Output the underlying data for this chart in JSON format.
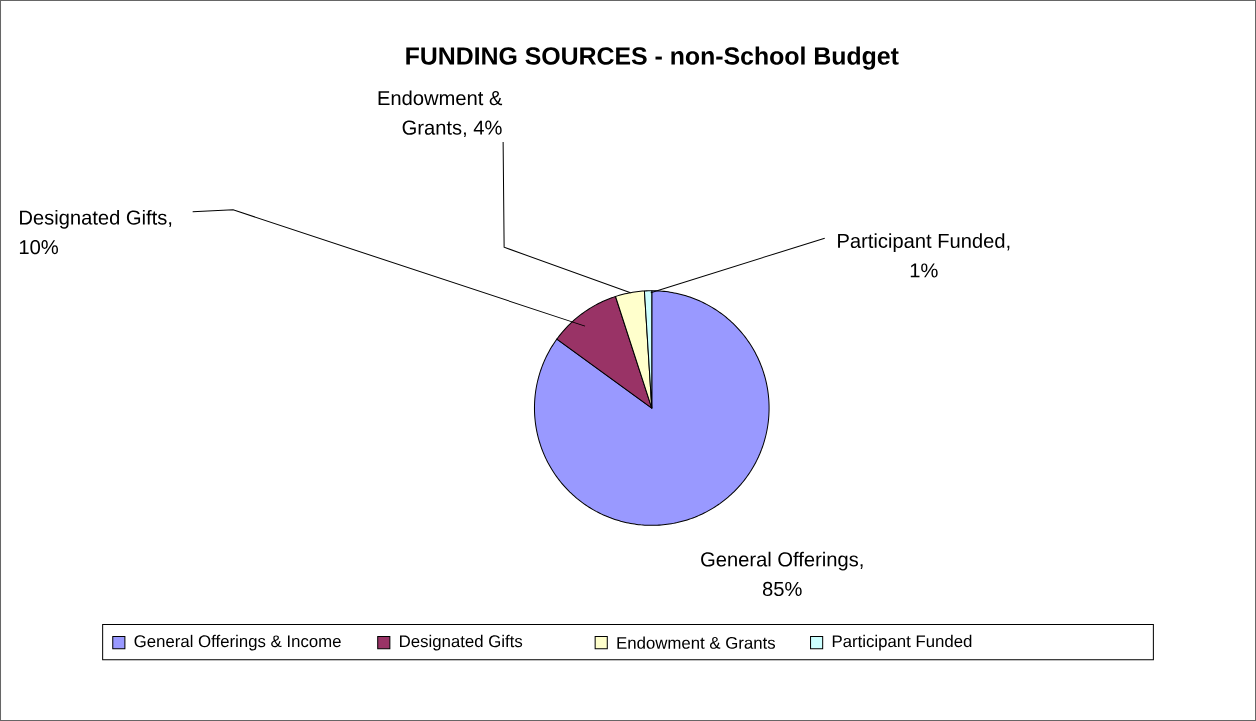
{
  "chart_data": {
    "type": "pie",
    "title": "FUNDING SOURCES - non-School Budget",
    "categories": [
      "General Offerings & Income",
      "Designated Gifts",
      "Endowment & Grants",
      "Participant Funded"
    ],
    "values": [
      85,
      10,
      4,
      1
    ],
    "colors": [
      "#9999ff",
      "#993366",
      "#ffffcc",
      "#ccffff"
    ],
    "value_labels": [
      "General Offerings, 85%",
      "Designated Gifts, 10%",
      "Endowment & Grants, 4%",
      "Participant Funded, 1%"
    ],
    "legend": "bottom"
  }
}
